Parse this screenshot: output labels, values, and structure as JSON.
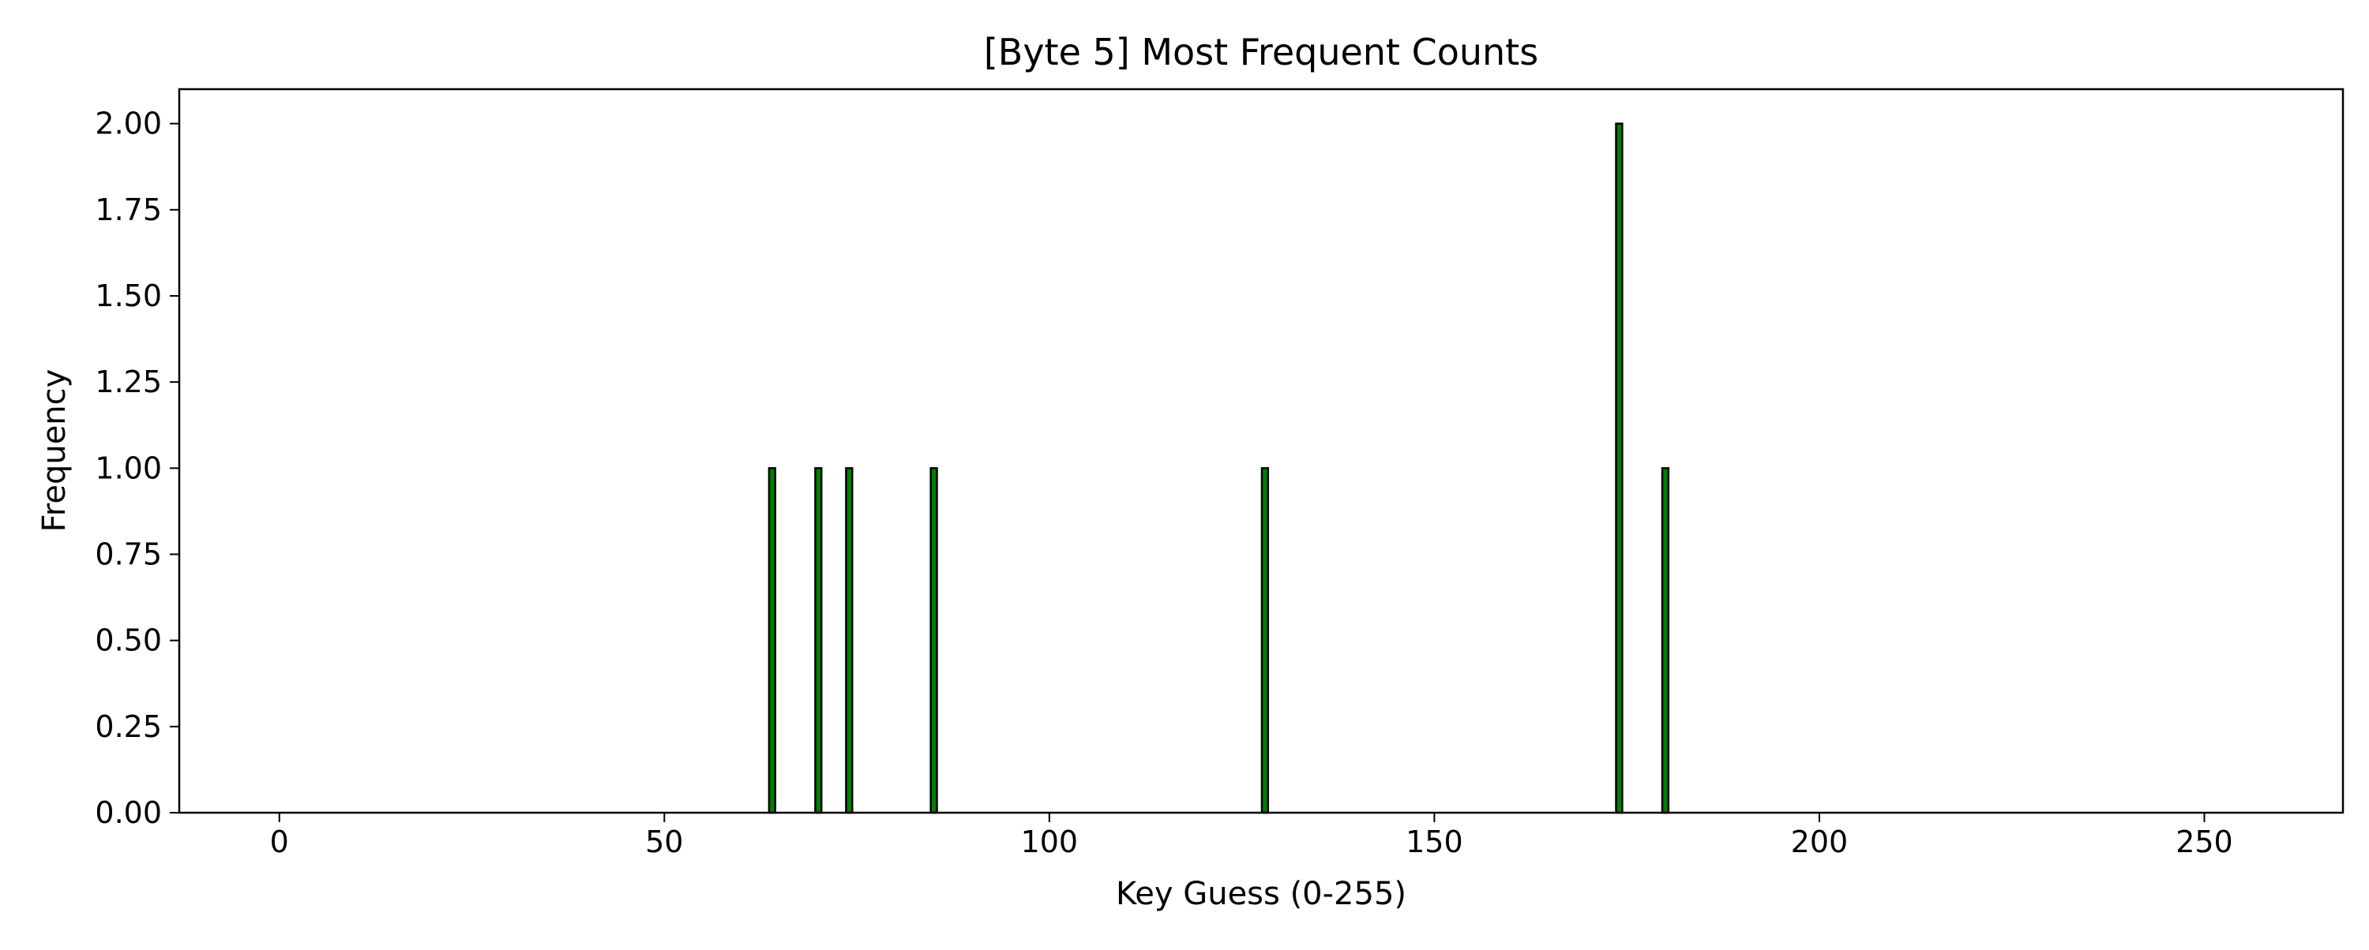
{
  "chart_data": {
    "type": "bar",
    "title": "[Byte 5] Most Frequent Counts",
    "xlabel": "Key Guess (0-255)",
    "ylabel": "Frequency",
    "x_range": [
      0,
      255
    ],
    "xlim": [
      -13,
      268
    ],
    "ylim": [
      0,
      2.1
    ],
    "xticks": [
      0,
      50,
      100,
      150,
      200,
      250
    ],
    "yticks": [
      "0.00",
      "0.25",
      "0.50",
      "0.75",
      "1.00",
      "1.25",
      "1.50",
      "1.75",
      "2.00"
    ],
    "grid": false,
    "bar_color": "#008000",
    "edge_color": "#000000",
    "nonzero": [
      {
        "x": 64,
        "y": 1
      },
      {
        "x": 70,
        "y": 1
      },
      {
        "x": 74,
        "y": 1
      },
      {
        "x": 85,
        "y": 1
      },
      {
        "x": 128,
        "y": 1
      },
      {
        "x": 174,
        "y": 2
      },
      {
        "x": 180,
        "y": 1
      }
    ]
  }
}
